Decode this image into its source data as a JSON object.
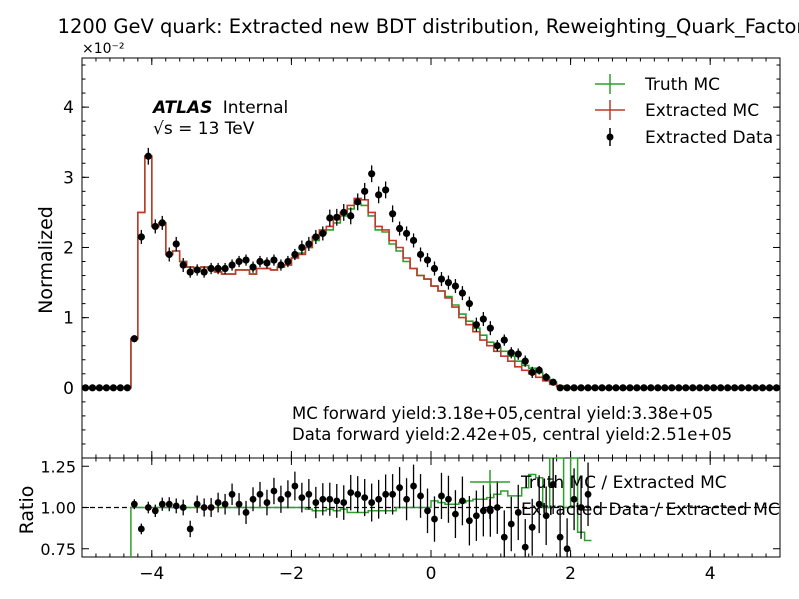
{
  "title": "1200 GeV quark: Extracted new BDT distribution, Reweighting_Quark_Factor",
  "atlas": {
    "label": "ATLAS",
    "status": "Internal",
    "energy_prefix": "√s = ",
    "energy": "13 TeV"
  },
  "yields": {
    "mc": "MC forward yield:3.18e+05,central yield:3.38e+05",
    "data": "Data forward yield:2.42e+05, central yield:2.51e+05"
  },
  "colors": {
    "truth": "#2ca02c",
    "extracted": "#c0392b",
    "data": "#000000"
  },
  "chart_data": [
    {
      "type": "line",
      "xlabel": "",
      "ylabel": "Normalized",
      "y_scale_label": "×10⁻²",
      "xlim": [
        -5,
        5
      ],
      "ylim": [
        -1,
        4.7
      ],
      "yticks": [
        0,
        1,
        2,
        3,
        4
      ],
      "legend_position": "top-right",
      "x_edges": [
        -5,
        -4.9,
        -4.8,
        -4.7,
        -4.6,
        -4.5,
        -4.4,
        -4.3,
        -4.2,
        -4.1,
        -4,
        -3.9,
        -3.8,
        -3.7,
        -3.6,
        -3.5,
        -3.4,
        -3.3,
        -3.2,
        -3.1,
        -3,
        -2.9,
        -2.8,
        -2.7,
        -2.6,
        -2.5,
        -2.4,
        -2.3,
        -2.2,
        -2.1,
        -2,
        -1.9,
        -1.8,
        -1.7,
        -1.6,
        -1.5,
        -1.4,
        -1.3,
        -1.2,
        -1.1,
        -1,
        -0.9,
        -0.8,
        -0.7,
        -0.6,
        -0.5,
        -0.4,
        -0.3,
        -0.2,
        -0.1,
        0,
        0.1,
        0.2,
        0.3,
        0.4,
        0.5,
        0.6,
        0.7,
        0.8,
        0.9,
        1,
        1.1,
        1.2,
        1.3,
        1.4,
        1.5,
        1.6,
        1.7,
        1.8,
        1.9,
        2,
        2.1,
        2.2,
        2.3,
        2.4,
        2.5,
        2.6,
        2.7,
        2.8,
        2.9,
        3,
        3.1,
        3.2,
        3.3,
        3.4,
        3.5,
        3.6,
        3.7,
        3.8,
        3.9,
        4,
        4.1,
        4.2,
        4.3,
        4.4,
        4.5,
        4.6,
        4.7,
        4.8,
        4.9,
        5
      ],
      "series": [
        {
          "name": "Truth MC",
          "style": "step",
          "values": [
            0,
            0,
            0,
            0,
            0,
            0,
            0,
            0.7,
            2.5,
            3.3,
            2.3,
            2.35,
            1.9,
            1.95,
            1.8,
            1.72,
            1.7,
            1.72,
            1.7,
            1.65,
            1.62,
            1.62,
            1.68,
            1.68,
            1.62,
            1.7,
            1.7,
            1.68,
            1.72,
            1.75,
            1.85,
            1.92,
            2.0,
            2.1,
            2.2,
            2.25,
            2.35,
            2.45,
            2.55,
            2.62,
            2.6,
            2.45,
            2.25,
            2.22,
            2.05,
            1.95,
            1.8,
            1.7,
            1.6,
            1.55,
            1.45,
            1.38,
            1.3,
            1.18,
            1.05,
            0.95,
            0.85,
            0.75,
            0.65,
            0.58,
            0.52,
            0.45,
            0.38,
            0.32,
            0.28,
            0.22,
            0.15,
            0.08,
            0.03,
            0.01,
            0,
            0,
            0,
            0,
            0,
            0,
            0,
            0,
            0,
            0,
            0,
            0,
            0,
            0,
            0,
            0,
            0,
            0,
            0,
            0,
            0,
            0,
            0,
            0,
            0,
            0,
            0,
            0,
            0,
            0
          ]
        },
        {
          "name": "Extracted MC",
          "style": "step",
          "values": [
            0,
            0,
            0,
            0,
            0,
            0,
            0,
            0.7,
            2.5,
            3.3,
            2.3,
            2.35,
            1.9,
            1.95,
            1.8,
            1.72,
            1.7,
            1.72,
            1.7,
            1.65,
            1.62,
            1.62,
            1.68,
            1.68,
            1.62,
            1.7,
            1.7,
            1.68,
            1.72,
            1.75,
            1.85,
            1.9,
            2.0,
            2.15,
            2.25,
            2.3,
            2.4,
            2.5,
            2.6,
            2.7,
            2.68,
            2.5,
            2.3,
            2.25,
            2.1,
            2.0,
            1.85,
            1.7,
            1.6,
            1.55,
            1.45,
            1.38,
            1.28,
            1.15,
            1.0,
            0.9,
            0.8,
            0.68,
            0.6,
            0.52,
            0.45,
            0.38,
            0.3,
            0.25,
            0.2,
            0.15,
            0.1,
            0.05,
            0.02,
            0.01,
            0,
            0,
            0,
            0,
            0,
            0,
            0,
            0,
            0,
            0,
            0,
            0,
            0,
            0,
            0,
            0,
            0,
            0,
            0,
            0,
            0,
            0,
            0,
            0,
            0,
            0,
            0,
            0,
            0,
            0
          ]
        },
        {
          "name": "Extracted Data",
          "style": "errorbar",
          "values": [
            0,
            0,
            0,
            0,
            0,
            0,
            0,
            0.7,
            2.15,
            3.3,
            2.3,
            2.35,
            1.9,
            2.05,
            1.75,
            1.65,
            1.68,
            1.65,
            1.7,
            1.7,
            1.7,
            1.75,
            1.8,
            1.82,
            1.72,
            1.8,
            1.78,
            1.82,
            1.75,
            1.8,
            1.9,
            2.0,
            2.05,
            2.15,
            2.2,
            2.42,
            2.43,
            2.5,
            2.45,
            2.65,
            2.8,
            3.05,
            2.75,
            2.82,
            2.48,
            2.27,
            2.2,
            2.1,
            1.9,
            1.82,
            1.7,
            1.55,
            1.5,
            1.45,
            1.35,
            1.2,
            0.9,
            0.98,
            0.85,
            0.6,
            0.68,
            0.5,
            0.48,
            0.38,
            0.22,
            0.25,
            0.15,
            0.08,
            0.0,
            0,
            0,
            0,
            0,
            0,
            0,
            0,
            0,
            0,
            0,
            0,
            0,
            0,
            0,
            0,
            0,
            0,
            0,
            0,
            0,
            0,
            0,
            0,
            0,
            0,
            0,
            0,
            0,
            0,
            0,
            0
          ],
          "errors": [
            0,
            0,
            0,
            0,
            0,
            0,
            0,
            0.05,
            0.1,
            0.12,
            0.1,
            0.1,
            0.1,
            0.1,
            0.1,
            0.08,
            0.08,
            0.08,
            0.08,
            0.08,
            0.08,
            0.08,
            0.08,
            0.08,
            0.08,
            0.08,
            0.08,
            0.08,
            0.08,
            0.08,
            0.08,
            0.1,
            0.1,
            0.1,
            0.1,
            0.12,
            0.12,
            0.12,
            0.12,
            0.12,
            0.12,
            0.12,
            0.12,
            0.12,
            0.12,
            0.1,
            0.1,
            0.1,
            0.1,
            0.1,
            0.1,
            0.1,
            0.1,
            0.1,
            0.1,
            0.1,
            0.1,
            0.1,
            0.1,
            0.08,
            0.08,
            0.08,
            0.08,
            0.08,
            0.08,
            0.06,
            0.06,
            0.04,
            0.02,
            0,
            0,
            0,
            0,
            0,
            0,
            0,
            0,
            0,
            0,
            0,
            0,
            0,
            0,
            0,
            0,
            0,
            0,
            0,
            0,
            0,
            0,
            0,
            0,
            0,
            0,
            0,
            0,
            0,
            0,
            0
          ]
        }
      ]
    },
    {
      "type": "line",
      "xlabel": "",
      "ylabel": "Ratio",
      "xlim": [
        -5,
        5
      ],
      "ylim": [
        0.7,
        1.3
      ],
      "yticks": [
        0.75,
        1.0,
        1.25
      ],
      "ytick_labels": [
        "0.75",
        "1.00",
        "1.25"
      ],
      "xticks": [
        -4,
        -2,
        0,
        2,
        4
      ],
      "xtick_labels": [
        "−4",
        "−2",
        "0",
        "2",
        "4"
      ],
      "reference_line": 1.0,
      "legend_position": "top-right",
      "series": [
        {
          "name": "Truth MC / Extracted MC",
          "style": "step",
          "x_start": -4.3,
          "x_step": 0.1,
          "values": [
            1.0,
            1.0,
            1.0,
            1.0,
            1.0,
            1.0,
            1.0,
            1.0,
            1.0,
            1.0,
            1.0,
            1.0,
            1.0,
            1.0,
            1.0,
            1.0,
            1.0,
            1.0,
            1.0,
            1.0,
            1.0,
            1.0,
            1.0,
            1.0,
            1.0,
            0.99,
            0.98,
            0.98,
            0.99,
            0.98,
            0.99,
            0.97,
            0.97,
            0.97,
            0.98,
            0.98,
            0.98,
            0.98,
            1.0,
            1.0,
            1.0,
            1.0,
            1.0,
            1.04,
            1.03,
            1.02,
            1.02,
            1.03,
            1.04,
            1.05,
            1.05,
            1.06,
            1.08,
            1.1,
            1.07,
            1.07,
            1.12,
            1.2,
            1.18,
            1.0,
            1.3,
            1.3,
            1.0,
            1.3,
            0.85,
            0.8
          ]
        },
        {
          "name": "Extracted Data / Extracted MC",
          "style": "errorbar",
          "x_start": -4.25,
          "x_step": 0.1,
          "values": [
            1.02,
            0.87,
            1.0,
            0.98,
            1.02,
            1.02,
            1.01,
            1.0,
            0.87,
            1.02,
            1.0,
            1.0,
            1.03,
            1.02,
            1.08,
            1.02,
            0.97,
            1.05,
            1.08,
            1.03,
            1.1,
            1.05,
            1.08,
            1.13,
            1.06,
            1.08,
            1.03,
            1.05,
            1.05,
            1.04,
            1.03,
            1.09,
            1.08,
            1.06,
            1.03,
            1.05,
            1.08,
            1.08,
            1.12,
            1.05,
            1.13,
            1.07,
            0.98,
            0.93,
            1.07,
            1.05,
            0.96,
            1.04,
            0.92,
            0.95,
            0.98,
            0.98,
            1.0,
            0.82,
            0.9,
            0.97,
            0.76,
            0.88,
            1.02,
            0.95,
            1.14,
            0.82,
            0.75,
            1.05,
            1.0,
            1.08
          ]
        }
      ]
    }
  ]
}
